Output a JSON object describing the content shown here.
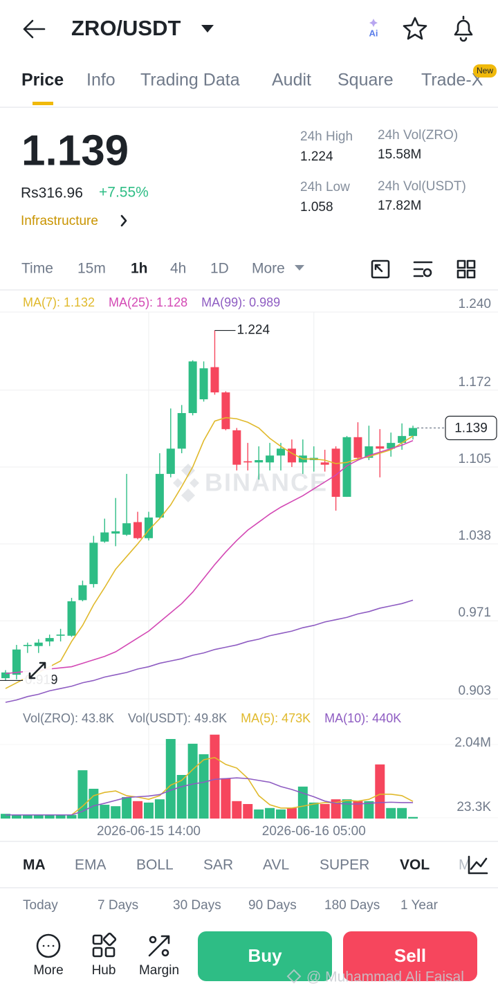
{
  "header": {
    "pair": "ZRO/USDT",
    "ai": "Ai"
  },
  "tabs": {
    "items": [
      "Price",
      "Info",
      "Trading Data",
      "Audit",
      "Square",
      "Trade-X"
    ],
    "badge": "New"
  },
  "ticker": {
    "price": "1.139",
    "fiat": "Rs316.96",
    "change": "+7.55%",
    "sector": "Infrastructure",
    "stats": [
      {
        "label": "24h High",
        "value": "1.224"
      },
      {
        "label": "24h Vol(ZRO)",
        "value": "15.58M"
      },
      {
        "label": "24h Low",
        "value": "1.058"
      },
      {
        "label": "24h Vol(USDT)",
        "value": "17.82M"
      }
    ]
  },
  "intervals": [
    "Time",
    "15m",
    "1h",
    "4h",
    "1D",
    "More"
  ],
  "chart_data": [
    {
      "type": "candlestick",
      "categories": [
        null,
        null,
        null,
        null,
        null,
        null,
        null,
        null,
        null,
        null,
        null,
        null,
        null,
        "2026-06-15 14:00",
        null,
        null,
        null,
        null,
        null,
        null,
        null,
        null,
        null,
        null,
        null,
        null,
        null,
        null,
        "2026-06-16 05:00",
        null,
        null,
        null,
        null,
        null,
        null,
        null,
        null,
        null
      ],
      "open": [
        0.921,
        0.924,
        0.949,
        0.949,
        0.953,
        0.958,
        0.958,
        0.989,
        1.003,
        1.04,
        1.047,
        1.046,
        1.057,
        1.043,
        1.061,
        1.099,
        1.121,
        1.152,
        1.164,
        1.192,
        1.17,
        1.137,
        1.11,
        1.109,
        1.109,
        1.115,
        1.121,
        1.109,
        1.111,
        1.109,
        1.121,
        1.079,
        1.131,
        1.113,
        1.123,
        1.121,
        1.126,
        1.132
      ],
      "high": [
        0.928,
        0.95,
        0.952,
        0.955,
        0.959,
        0.964,
        0.991,
        1.006,
        1.045,
        1.06,
        1.078,
        1.099,
        1.066,
        1.066,
        1.117,
        1.156,
        1.159,
        1.198,
        1.197,
        1.224,
        1.171,
        1.139,
        1.126,
        1.123,
        1.126,
        1.126,
        1.129,
        1.129,
        1.123,
        1.12,
        1.123,
        1.132,
        1.144,
        1.141,
        1.138,
        1.135,
        1.143,
        1.141
      ],
      "low": [
        0.919,
        0.92,
        0.943,
        0.943,
        0.949,
        0.953,
        0.957,
        0.988,
        1.0,
        1.039,
        1.036,
        1.045,
        1.042,
        1.041,
        1.06,
        1.096,
        1.117,
        1.15,
        1.162,
        1.168,
        1.137,
        1.102,
        1.102,
        1.094,
        1.102,
        1.102,
        1.105,
        1.099,
        1.101,
        1.101,
        1.067,
        1.079,
        1.111,
        1.111,
        1.096,
        1.114,
        1.12,
        1.129
      ],
      "close": [
        0.926,
        0.946,
        0.95,
        0.952,
        0.956,
        0.959,
        0.988,
        1.002,
        1.039,
        1.048,
        1.049,
        1.056,
        1.043,
        1.061,
        1.099,
        1.121,
        1.152,
        1.197,
        1.191,
        1.17,
        1.138,
        1.107,
        1.109,
        1.111,
        1.115,
        1.121,
        1.109,
        1.115,
        1.113,
        1.107,
        1.079,
        1.131,
        1.113,
        1.123,
        1.121,
        1.126,
        1.132,
        1.139
      ],
      "up_color": "#2ebd85",
      "down_color": "#f6465d",
      "series": [
        {
          "name": "MA(7): 1.132",
          "color": "#e0b92b",
          "values": [
            0.912,
            0.917,
            0.922,
            0.926,
            0.931,
            0.936,
            0.953,
            0.967,
            0.985,
            1.0,
            1.016,
            1.027,
            1.038,
            1.05,
            1.06,
            1.072,
            1.088,
            1.105,
            1.128,
            1.145,
            1.148,
            1.147,
            1.144,
            1.139,
            1.13,
            1.123,
            1.117,
            1.112,
            1.112,
            1.111,
            1.108,
            1.109,
            1.112,
            1.114,
            1.117,
            1.12,
            1.126,
            1.132
          ]
        },
        {
          "name": "MA(25): 1.128",
          "color": "#d348b4",
          "values": [
            0.925,
            0.926,
            0.927,
            0.928,
            0.929,
            0.93,
            0.931,
            0.934,
            0.937,
            0.94,
            0.944,
            0.95,
            0.956,
            0.962,
            0.97,
            0.978,
            0.986,
            0.996,
            1.008,
            1.02,
            1.031,
            1.041,
            1.05,
            1.057,
            1.064,
            1.07,
            1.075,
            1.08,
            1.086,
            1.092,
            1.098,
            1.106,
            1.111,
            1.115,
            1.118,
            1.121,
            1.124,
            1.128
          ]
        },
        {
          "name": "MA(99): 0.989",
          "color": "#8e5cc2",
          "values": [
            0.9,
            0.902,
            0.905,
            0.907,
            0.91,
            0.912,
            0.914,
            0.917,
            0.919,
            0.922,
            0.924,
            0.926,
            0.929,
            0.931,
            0.934,
            0.936,
            0.938,
            0.941,
            0.943,
            0.946,
            0.948,
            0.95,
            0.953,
            0.955,
            0.958,
            0.96,
            0.962,
            0.965,
            0.967,
            0.97,
            0.972,
            0.974,
            0.977,
            0.979,
            0.982,
            0.984,
            0.986,
            0.989
          ]
        }
      ],
      "ylim": [
        0.903,
        1.24
      ],
      "yticks": [
        {
          "value": 1.24,
          "label": "1.240"
        },
        1.172,
        1.105,
        1.038,
        0.971,
        0.903
      ],
      "grid": true
    },
    {
      "type": "bar",
      "legend_texts": [
        "Vol(ZRO): 43.8K",
        "Vol(USDT): 49.8K"
      ],
      "values": [
        130000,
        110000,
        100000,
        110000,
        100000,
        100000,
        100000,
        1330000,
        820000,
        380000,
        340000,
        590000,
        480000,
        440000,
        530000,
        2190000,
        1200000,
        2060000,
        1770000,
        2310000,
        1110000,
        480000,
        400000,
        250000,
        290000,
        250000,
        290000,
        880000,
        440000,
        400000,
        530000,
        530000,
        480000,
        480000,
        1490000,
        290000,
        290000,
        43800
      ],
      "series": [
        {
          "name": "MA(5): 473K",
          "color": "#e0b92b",
          "values": [
            100000,
            100000,
            100000,
            100000,
            100000,
            100000,
            100000,
            340000,
            630000,
            720000,
            760000,
            630000,
            590000,
            530000,
            630000,
            920000,
            1050000,
            1350000,
            1620000,
            1680000,
            1490000,
            1390000,
            1110000,
            630000,
            380000,
            290000,
            290000,
            340000,
            400000,
            440000,
            440000,
            500000,
            480000,
            530000,
            670000,
            670000,
            630000,
            473000
          ]
        },
        {
          "name": "MA(10): 440K",
          "color": "#8e5cc2",
          "values": [
            100000,
            100000,
            100000,
            100000,
            100000,
            100000,
            100000,
            200000,
            350000,
            420000,
            500000,
            580000,
            600000,
            620000,
            660000,
            780000,
            880000,
            950000,
            1000000,
            1080000,
            1100000,
            1120000,
            1100000,
            1050000,
            1000000,
            880000,
            800000,
            700000,
            600000,
            480000,
            420000,
            400000,
            400000,
            420000,
            440000,
            450000,
            440000,
            440000
          ]
        }
      ],
      "ylim": [
        0,
        2400000
      ],
      "yticks": [
        {
          "value": 2040000,
          "label": "2.04M"
        },
        {
          "value": 23300,
          "label": "23.3K"
        }
      ]
    }
  ],
  "watermark": "BINANCE",
  "indicators": [
    "MA",
    "EMA",
    "BOLL",
    "SAR",
    "AVL",
    "SUPER",
    "VOL",
    "M"
  ],
  "periods": [
    "Today",
    "7 Days",
    "30 Days",
    "90 Days",
    "180 Days",
    "1 Year"
  ],
  "actions": {
    "more": "More",
    "hub": "Hub",
    "margin": "Margin",
    "buy": "Buy",
    "sell": "Sell"
  },
  "credit": "@ Muhammad Ali Faisal"
}
